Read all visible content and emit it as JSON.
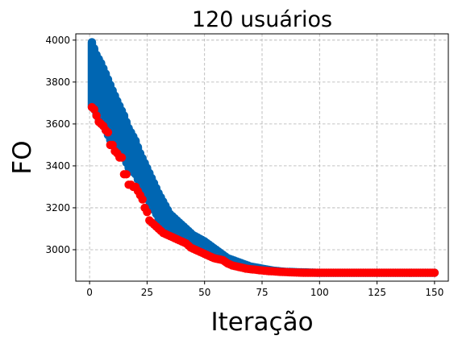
{
  "chart_data": {
    "type": "scatter",
    "title": "120 usuários",
    "xlabel": "Iteração",
    "ylabel": "FO",
    "xlim": [
      -6,
      156
    ],
    "ylim": [
      2850,
      4030
    ],
    "xticks": [
      0,
      25,
      50,
      75,
      100,
      125,
      150
    ],
    "xtick_labels": [
      "0",
      "25",
      "50",
      "75",
      "100",
      "125",
      "150"
    ],
    "yticks": [
      3000,
      3200,
      3400,
      3600,
      3800,
      4000
    ],
    "ytick_labels": [
      "3000",
      "3200",
      "3400",
      "3600",
      "3800",
      "4000"
    ],
    "grid": true,
    "legend": "none",
    "series": [
      {
        "color": "#0066b2",
        "kind": "vertical spread of FO values per iteration (min to max)",
        "x": [
          1,
          2,
          3,
          5,
          7,
          10,
          12,
          15,
          17,
          20,
          22,
          25,
          30,
          35,
          40,
          45,
          50,
          55,
          60,
          65,
          70,
          75,
          80,
          85,
          90,
          100,
          110,
          120,
          130,
          140,
          150
        ],
        "y_min": [
          3680,
          3670,
          3640,
          3610,
          3570,
          3500,
          3470,
          3440,
          3390,
          3360,
          3310,
          3250,
          3150,
          3090,
          3060,
          3030,
          3000,
          2970,
          2945,
          2930,
          2915,
          2905,
          2900,
          2895,
          2893,
          2890,
          2890,
          2890,
          2890,
          2890,
          2890
        ],
        "y_max": [
          3990,
          3960,
          3930,
          3890,
          3840,
          3760,
          3710,
          3640,
          3580,
          3520,
          3460,
          3390,
          3270,
          3170,
          3120,
          3070,
          3040,
          3000,
          2960,
          2940,
          2920,
          2910,
          2900,
          2895,
          2893,
          2890,
          2890,
          2890,
          2890,
          2890,
          2890
        ]
      },
      {
        "color": "#ff0000",
        "kind": "best FO per iteration",
        "x": [
          1,
          2,
          3,
          4,
          5,
          6,
          7,
          8,
          9,
          10,
          11,
          12,
          13,
          14,
          15,
          16,
          17,
          18,
          19,
          20,
          21,
          22,
          23,
          24,
          25,
          26,
          27,
          28,
          29,
          30,
          32,
          34,
          36,
          38,
          40,
          42,
          44,
          46,
          48,
          50,
          52,
          54,
          56,
          58,
          60,
          62,
          64,
          66,
          68,
          70,
          72,
          74,
          76,
          78,
          80,
          82,
          84,
          86,
          88,
          90,
          95,
          100,
          105,
          110,
          115,
          120,
          125,
          130,
          135,
          140,
          145,
          150
        ],
        "y": [
          3680,
          3670,
          3640,
          3610,
          3600,
          3590,
          3570,
          3560,
          3500,
          3500,
          3470,
          3460,
          3440,
          3440,
          3360,
          3360,
          3310,
          3310,
          3300,
          3300,
          3280,
          3260,
          3240,
          3200,
          3180,
          3140,
          3130,
          3120,
          3110,
          3100,
          3080,
          3070,
          3060,
          3050,
          3040,
          3030,
          3010,
          3000,
          2990,
          2980,
          2970,
          2960,
          2955,
          2950,
          2935,
          2925,
          2920,
          2915,
          2910,
          2907,
          2905,
          2902,
          2900,
          2898,
          2897,
          2895,
          2894,
          2893,
          2892,
          2891,
          2890,
          2890,
          2890,
          2890,
          2890,
          2890,
          2890,
          2890,
          2890,
          2890,
          2890,
          2890
        ]
      }
    ]
  }
}
